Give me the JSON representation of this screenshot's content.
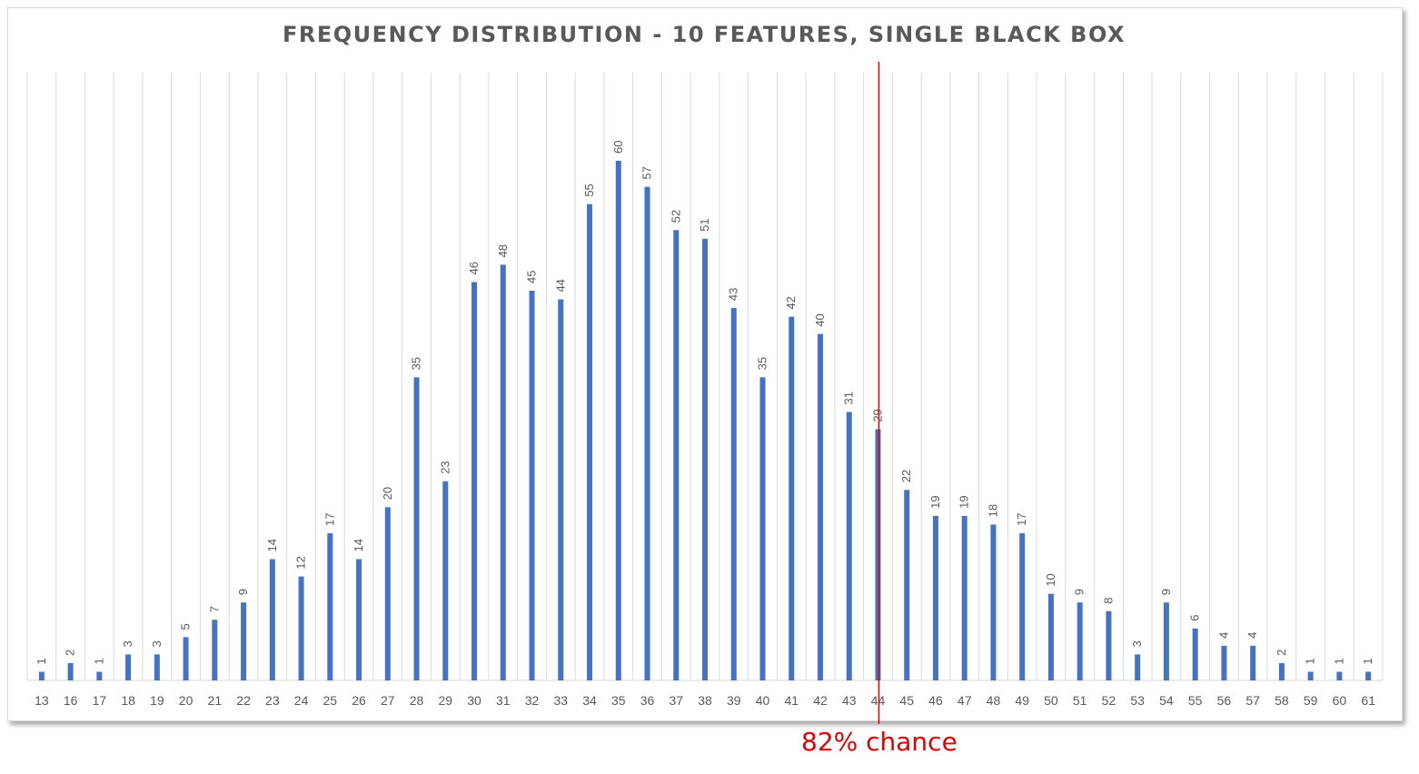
{
  "chart_data": {
    "type": "bar",
    "title": "FREQUENCY DISTRIBUTION - 10 FEATURES, SINGLE BLACK BOX",
    "xlabel": "",
    "ylabel": "",
    "categories": [
      "13",
      "16",
      "17",
      "18",
      "19",
      "20",
      "21",
      "22",
      "23",
      "24",
      "25",
      "26",
      "27",
      "28",
      "29",
      "30",
      "31",
      "32",
      "33",
      "34",
      "35",
      "36",
      "37",
      "38",
      "39",
      "40",
      "41",
      "42",
      "43",
      "44",
      "45",
      "46",
      "47",
      "48",
      "49",
      "50",
      "51",
      "52",
      "53",
      "54",
      "55",
      "56",
      "57",
      "58",
      "59",
      "60",
      "61"
    ],
    "values": [
      1,
      2,
      1,
      3,
      3,
      5,
      7,
      9,
      14,
      12,
      17,
      14,
      20,
      35,
      23,
      46,
      48,
      45,
      44,
      55,
      60,
      57,
      52,
      51,
      43,
      35,
      42,
      40,
      31,
      29,
      22,
      19,
      19,
      18,
      17,
      10,
      9,
      8,
      3,
      9,
      6,
      4,
      4,
      2,
      1,
      1,
      1
    ],
    "ylim": [
      0,
      60
    ],
    "grid": "vertical",
    "legend": "none",
    "bar_color": "#4472c4",
    "reference_line": {
      "category": "44",
      "color": "#e00000",
      "label": "82% chance"
    }
  }
}
